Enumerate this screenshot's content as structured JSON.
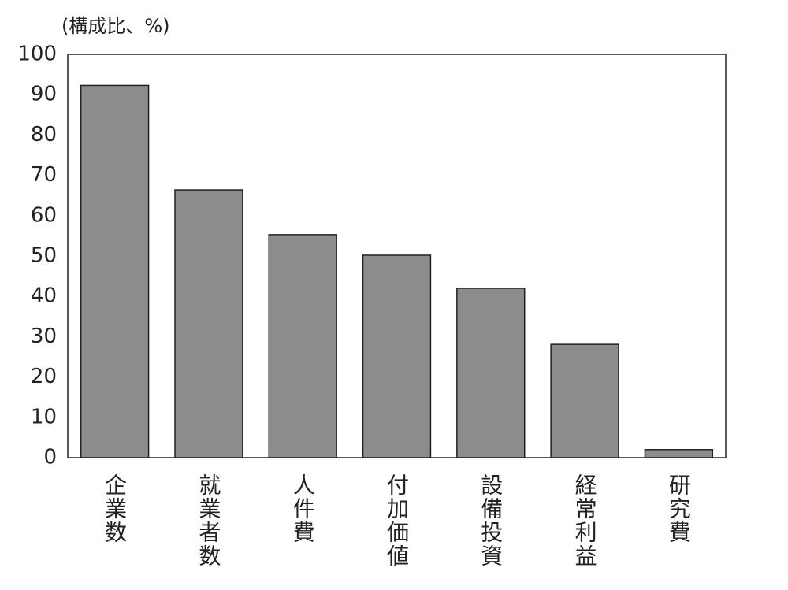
{
  "chart_data": {
    "type": "bar",
    "y_label": "(構成比、%)",
    "categories": [
      "企業数",
      "就業者数",
      "人件費",
      "付加価値",
      "設備投資",
      "経常利益",
      "研究費"
    ],
    "values": [
      92.3,
      66.4,
      55.3,
      50.2,
      42.0,
      28.1,
      2.0
    ],
    "color": "#8c8c8c",
    "ylim": [
      0,
      100
    ],
    "yticks": [
      0,
      10,
      20,
      30,
      40,
      50,
      60,
      70,
      80,
      90,
      100
    ],
    "grid": false
  }
}
